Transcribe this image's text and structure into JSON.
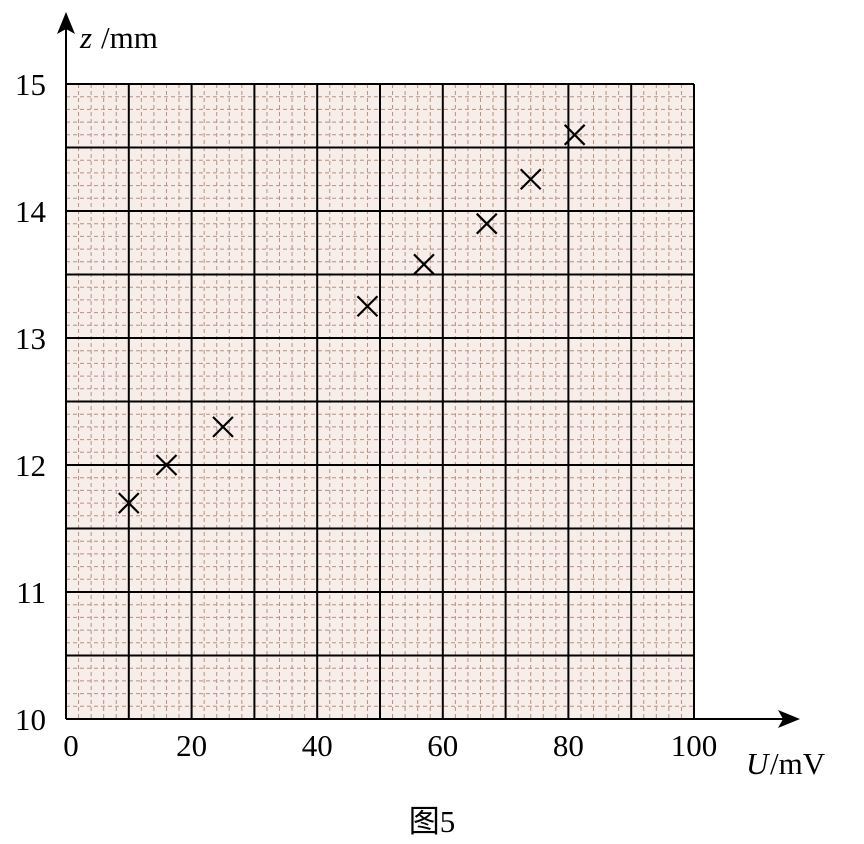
{
  "chart_data": {
    "type": "scatter",
    "xlabel": {
      "symbol": "U",
      "unit": "/mV"
    },
    "ylabel": {
      "symbol": "z",
      "unit": "/mm"
    },
    "caption": "图5",
    "x": [
      10,
      16,
      25,
      48,
      57,
      67,
      74,
      81
    ],
    "values": [
      11.7,
      12.0,
      12.3,
      13.25,
      13.58,
      13.9,
      14.25,
      14.6
    ],
    "color": "#000000",
    "xlim": [
      0,
      100
    ],
    "xticks": [
      0,
      20,
      40,
      60,
      80,
      100
    ],
    "ylim": [
      10,
      15
    ],
    "yticks": [
      10,
      11,
      12,
      13,
      14,
      15
    ],
    "grid": true
  }
}
